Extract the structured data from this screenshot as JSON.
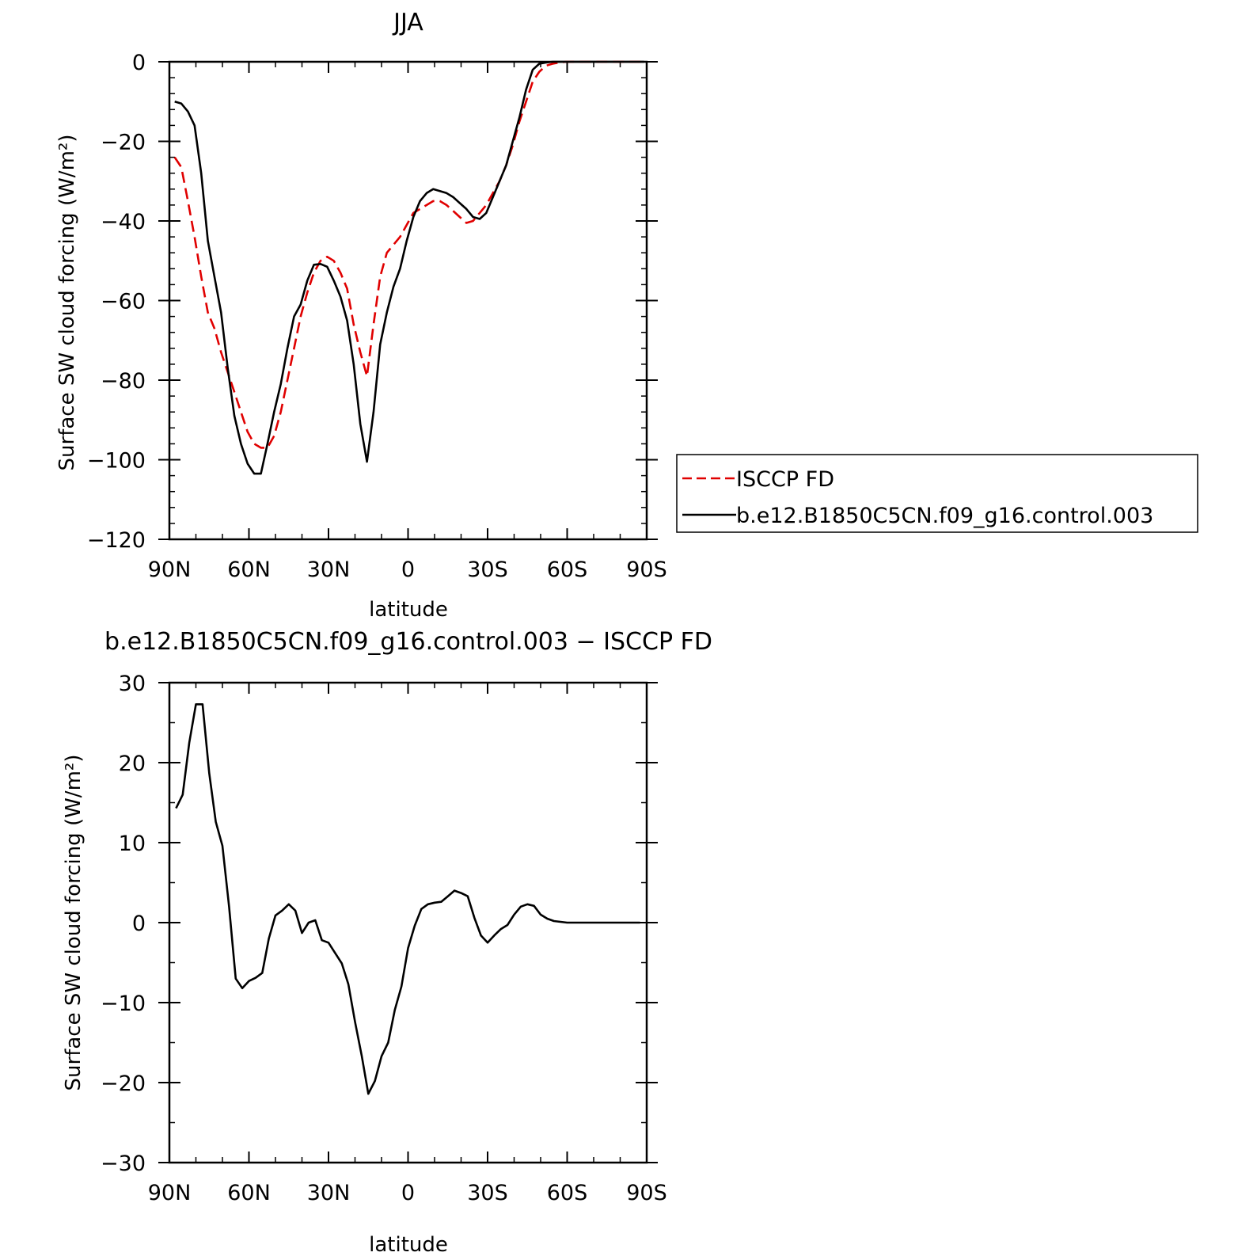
{
  "chart_data": [
    {
      "type": "line",
      "title": "JJA",
      "xlabel": "latitude",
      "ylabel": "Surface SW cloud forcing (W/m²)",
      "xlim": [
        90,
        -90
      ],
      "ylim": [
        -120,
        0
      ],
      "xticks": [
        90,
        60,
        30,
        0,
        -30,
        -60,
        -90
      ],
      "xtick_labels": [
        "90N",
        "60N",
        "30N",
        "0",
        "30S",
        "60S",
        "90S"
      ],
      "yticks": [
        0,
        -20,
        -40,
        -60,
        -80,
        -100,
        -120
      ],
      "ytick_labels": [
        "0",
        "−20",
        "−40",
        "−60",
        "−80",
        "−100",
        "−120"
      ],
      "legend": {
        "placement": "outside-right"
      },
      "series": [
        {
          "name": "ISCCP FD",
          "color": "#e00000",
          "dash": "dashed",
          "x": [
            88,
            85.5,
            83,
            80.5,
            78,
            75.5,
            73,
            70.5,
            68,
            65.5,
            63,
            60.5,
            58,
            55.5,
            53,
            50.5,
            48,
            45.5,
            43,
            40.5,
            38,
            35.5,
            33,
            30.5,
            28,
            25.5,
            23,
            20.5,
            18,
            15.5,
            13,
            10.5,
            8,
            5.5,
            3,
            0.5,
            -2,
            -4.5,
            -7,
            -9.5,
            -12,
            -14.5,
            -17,
            -19.5,
            -22,
            -24.5,
            -27,
            -29.5,
            -32,
            -34.5,
            -37,
            -39.5,
            -42,
            -44.5,
            -47,
            -49.5,
            -52,
            -54.5,
            -57,
            -59.5,
            -62,
            -64.5,
            -67,
            -69.5,
            -72,
            -74.5,
            -77,
            -79.5,
            -82,
            -84.5,
            -87,
            -89
          ],
          "y": [
            -24,
            -26.5,
            -35,
            -44,
            -54,
            -63,
            -67,
            -73,
            -78,
            -83,
            -88,
            -93,
            -96,
            -97,
            -97,
            -94,
            -88,
            -80,
            -72,
            -64,
            -58,
            -53,
            -50,
            -49,
            -50,
            -53,
            -57,
            -66,
            -73,
            -79,
            -66,
            -54,
            -48,
            -46,
            -44,
            -41,
            -38,
            -37,
            -36,
            -35,
            -35,
            -36,
            -37.5,
            -39,
            -40.5,
            -40,
            -38,
            -36,
            -33,
            -30,
            -26,
            -21,
            -15,
            -10,
            -5,
            -2.5,
            -1,
            -0.5,
            -0.2,
            0,
            0,
            0,
            0,
            0,
            0,
            0,
            0,
            0,
            0,
            0,
            0,
            0
          ]
        },
        {
          "name": "b.e12.B1850C5CN.f09_g16.control.003",
          "color": "#000000",
          "dash": "solid",
          "x": [
            88,
            85.5,
            83,
            80.5,
            78,
            75.5,
            73,
            70.5,
            68,
            65.5,
            63,
            60.5,
            58,
            55.5,
            53,
            50.5,
            48,
            45.5,
            43,
            40.5,
            38,
            35.5,
            33,
            30.5,
            28,
            25.5,
            23,
            20.5,
            18,
            15.5,
            13,
            10.5,
            8,
            5.5,
            3,
            0.5,
            -2,
            -4.5,
            -7,
            -9.5,
            -12,
            -14.5,
            -17,
            -19.5,
            -22,
            -24.5,
            -27,
            -29.5,
            -32,
            -34.5,
            -37,
            -39.5,
            -42,
            -44.5,
            -47,
            -49.5,
            -52,
            -54.5,
            -57,
            -59.5,
            -62,
            -64.5,
            -67,
            -69.5,
            -72,
            -74.5,
            -77,
            -79.5,
            -82,
            -84.5,
            -87,
            -89
          ],
          "y": [
            -10,
            -10.5,
            -12.5,
            -16,
            -28,
            -45,
            -54,
            -63,
            -77,
            -89,
            -96,
            -101,
            -103.5,
            -103.5,
            -96,
            -88,
            -81,
            -72,
            -64,
            -61,
            -55,
            -51,
            -50.8,
            -51.5,
            -55,
            -59,
            -65,
            -76,
            -91,
            -100.5,
            -88,
            -71,
            -63,
            -56.5,
            -52,
            -45,
            -39,
            -35,
            -33,
            -32,
            -32.5,
            -33,
            -34,
            -35.5,
            -37,
            -39,
            -39.5,
            -38,
            -34,
            -30,
            -26,
            -20,
            -14,
            -7,
            -2,
            -0.5,
            -0.2,
            0,
            0,
            0,
            0,
            0,
            0,
            0,
            0,
            0,
            0,
            0,
            0,
            0,
            0,
            0
          ]
        }
      ]
    },
    {
      "type": "line",
      "title": "b.e12.B1850C5CN.f09_g16.control.003 − ISCCP FD",
      "xlabel": "latitude",
      "ylabel": "Surface SW cloud forcing (W/m²)",
      "xlim": [
        90,
        -90
      ],
      "ylim": [
        -30,
        30
      ],
      "xticks": [
        90,
        60,
        30,
        0,
        -30,
        -60,
        -90
      ],
      "xtick_labels": [
        "90N",
        "60N",
        "30N",
        "0",
        "30S",
        "60S",
        "90S"
      ],
      "yticks": [
        30,
        20,
        10,
        0,
        -10,
        -20,
        -30
      ],
      "ytick_labels": [
        "30",
        "20",
        "10",
        "0",
        "−10",
        "−20",
        "−30"
      ],
      "series": [
        {
          "color": "#000000",
          "dash": "solid",
          "x": [
            87.5,
            85,
            82.5,
            80,
            77.5,
            75,
            72.5,
            70,
            67.5,
            65,
            62.5,
            60,
            57.5,
            55,
            52.5,
            50,
            47.5,
            45,
            42.5,
            40,
            37.5,
            35,
            32.5,
            30,
            27.5,
            25,
            22.5,
            20,
            17.5,
            15,
            12.5,
            10,
            7.5,
            5,
            2.5,
            0,
            -2.5,
            -5,
            -7.5,
            -10,
            -12.5,
            -15,
            -17.5,
            -20,
            -22.5,
            -25,
            -27.5,
            -30,
            -32.5,
            -35,
            -37.5,
            -40,
            -42.5,
            -45,
            -47.5,
            -50,
            -52.5,
            -55,
            -57.5,
            -60,
            -62.5,
            -65,
            -67.5,
            -70,
            -72.5,
            -75,
            -77.5,
            -80,
            -82.5,
            -85,
            -87.5
          ],
          "y": [
            14.3,
            16,
            22.5,
            27.3,
            27.3,
            18.7,
            12.6,
            9.6,
            2,
            -7,
            -8.2,
            -7.3,
            -6.9,
            -6.3,
            -2,
            0.9,
            1.5,
            2.3,
            1.5,
            -1.3,
            0,
            0.3,
            -2.2,
            -2.5,
            -3.8,
            -5.1,
            -7.7,
            -12.4,
            -16.6,
            -21.4,
            -19.8,
            -16.7,
            -15,
            -10.9,
            -8,
            -3.2,
            -0.4,
            1.7,
            2.3,
            2.5,
            2.6,
            3.3,
            4,
            3.7,
            3.3,
            0.6,
            -1.6,
            -2.5,
            -1.6,
            -0.8,
            -0.3,
            1,
            2,
            2.3,
            2.1,
            1,
            0.5,
            0.2,
            0.1,
            0,
            0,
            0,
            0,
            0,
            0,
            0,
            0,
            0,
            0,
            0,
            0
          ]
        }
      ]
    }
  ]
}
